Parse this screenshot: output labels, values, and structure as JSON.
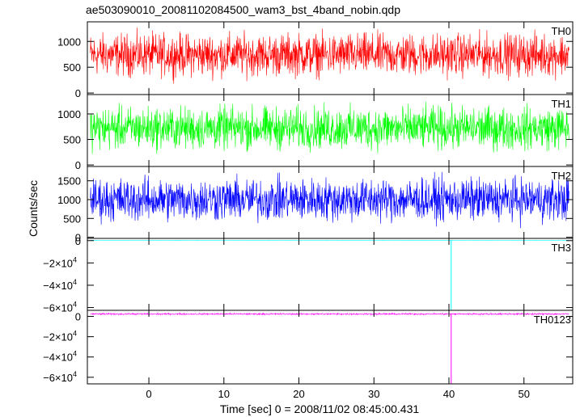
{
  "title": "ae503090010_20081102084500_wam3_bst_4band_nobin.qdp",
  "ylabel": "Counts/sec",
  "xlabel": "Time [sec] 0 = 2008/11/02 08:45:00.431",
  "colors": {
    "TH0": "#ff0000",
    "TH1": "#00ff00",
    "TH2": "#0000ff",
    "TH3": "#00ffff",
    "TH0123": "#ff00ff",
    "frame": "#000000"
  },
  "chart_data": [
    {
      "type": "line",
      "panel": "TH0",
      "series": [
        {
          "name": "TH0"
        }
      ],
      "x_range": [
        -8.2,
        56.5
      ],
      "ylim": [
        -30,
        1380
      ],
      "y_ticks": [
        {
          "v": 0,
          "label": "0"
        },
        {
          "v": 500,
          "label": "500"
        },
        {
          "v": 1000,
          "label": "1000"
        }
      ],
      "x_ticks": [
        0,
        10,
        20,
        30,
        40,
        50
      ],
      "signal": {
        "mean": 620,
        "low": 150,
        "high": 1330
      }
    },
    {
      "type": "line",
      "panel": "TH1",
      "series": [
        {
          "name": "TH1"
        }
      ],
      "x_range": [
        -8.2,
        56.5
      ],
      "ylim": [
        -30,
        1380
      ],
      "y_ticks": [
        {
          "v": 0,
          "label": "0"
        },
        {
          "v": 500,
          "label": "500"
        },
        {
          "v": 1000,
          "label": "1000"
        }
      ],
      "x_ticks": [
        0,
        10,
        20,
        30,
        40,
        50
      ],
      "signal": {
        "mean": 600,
        "low": 120,
        "high": 1320
      }
    },
    {
      "type": "line",
      "panel": "TH2",
      "series": [
        {
          "name": "TH2"
        }
      ],
      "x_range": [
        -8.2,
        56.5
      ],
      "ylim": [
        -30,
        1880
      ],
      "y_ticks": [
        {
          "v": 0,
          "label": "0"
        },
        {
          "v": 500,
          "label": "500"
        },
        {
          "v": 1000,
          "label": "1000"
        },
        {
          "v": 1500,
          "label": "1500"
        }
      ],
      "x_ticks": [
        0,
        10,
        20,
        30,
        40,
        50
      ],
      "signal": {
        "mean": 930,
        "low": 180,
        "high": 1820
      }
    },
    {
      "type": "line",
      "panel": "TH3",
      "series": [
        {
          "name": "TH3"
        }
      ],
      "x_range": [
        -8.2,
        56.5
      ],
      "ylim": [
        -62500,
        2000
      ],
      "y_ticks": [
        {
          "v": 0,
          "label": "0"
        },
        {
          "v": -20000,
          "label": "−2×10",
          "exp": "4"
        },
        {
          "v": -40000,
          "label": "−4×10",
          "exp": "4"
        },
        {
          "v": -60000,
          "label": "−6×10",
          "exp": "4"
        }
      ],
      "x_ticks": [
        0,
        10,
        20,
        30,
        40,
        50
      ],
      "signal": {
        "mean": 300,
        "low": 150,
        "high": 450
      },
      "spike": {
        "x": 40.3,
        "y": -62000
      }
    },
    {
      "type": "line",
      "panel": "TH0123",
      "series": [
        {
          "name": "TH0123"
        }
      ],
      "x_range": [
        -8.2,
        56.5
      ],
      "ylim": [
        -66500,
        6000
      ],
      "y_ticks": [
        {
          "v": 0,
          "label": "0"
        },
        {
          "v": -20000,
          "label": "−2×10",
          "exp": "4"
        },
        {
          "v": -40000,
          "label": "−4×10",
          "exp": "4"
        },
        {
          "v": -60000,
          "label": "−6×10",
          "exp": "4"
        }
      ],
      "x_ticks": [
        0,
        10,
        20,
        30,
        40,
        50
      ],
      "signal": {
        "mean": 2400,
        "low": 1200,
        "high": 3600
      },
      "spike": {
        "x": 40.3,
        "y": -66000
      }
    }
  ]
}
